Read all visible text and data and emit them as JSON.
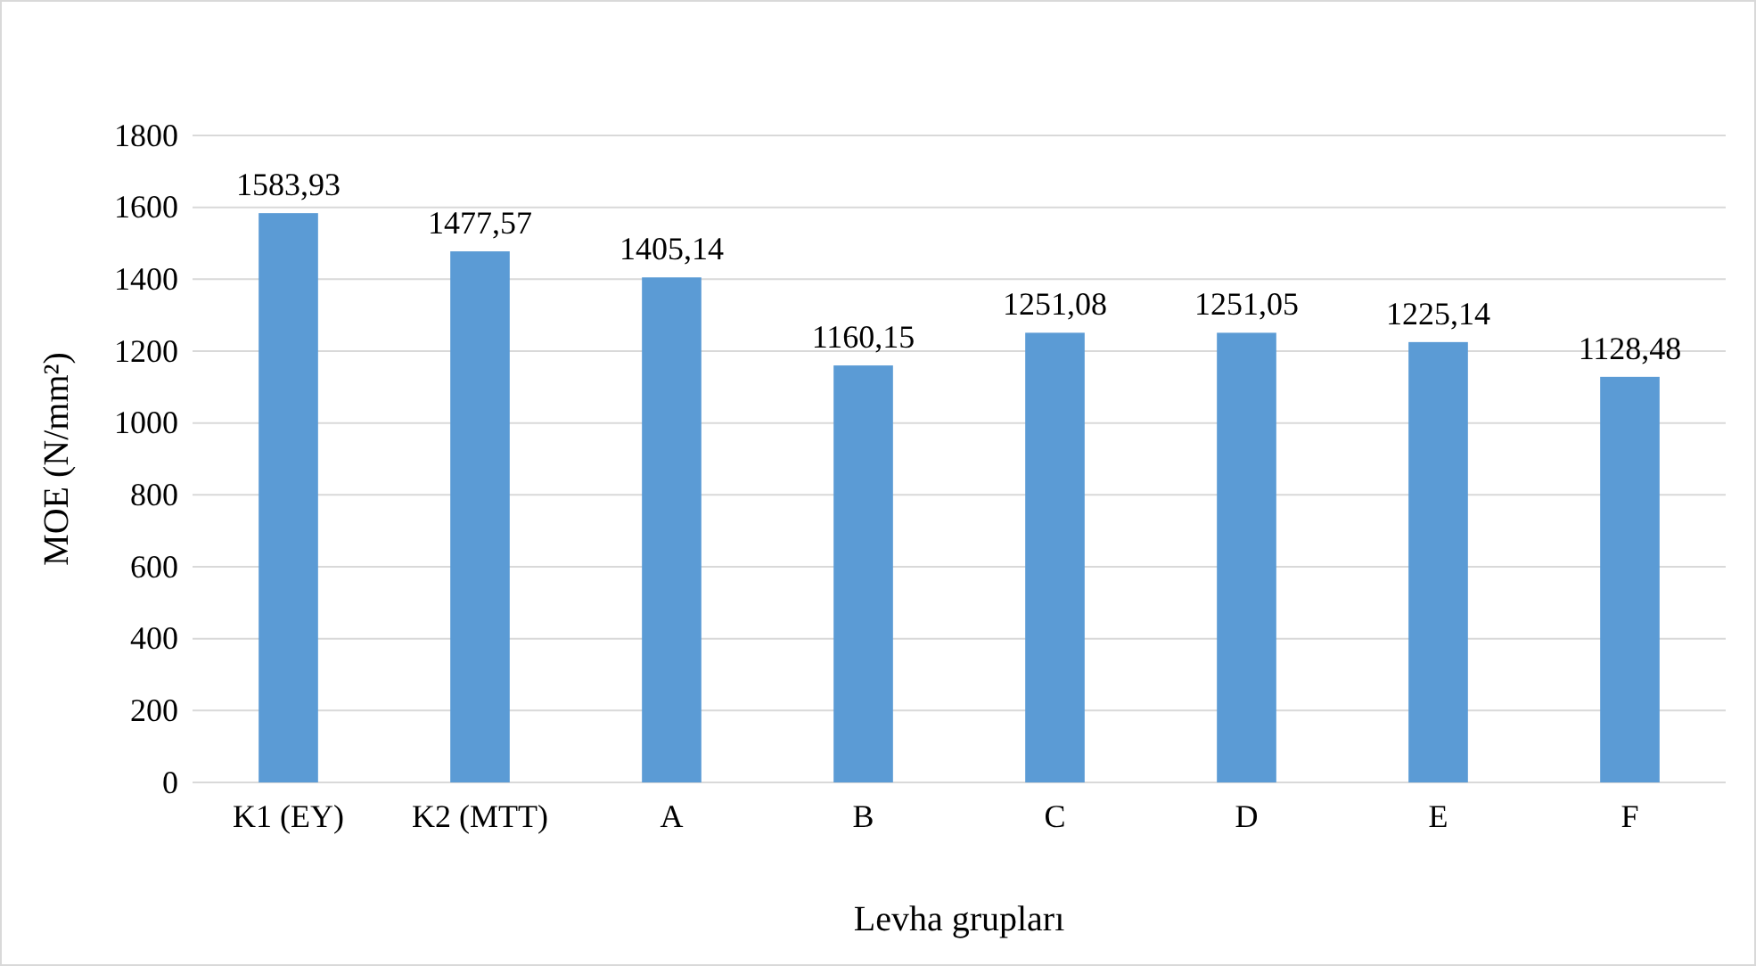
{
  "chart_data": {
    "type": "bar",
    "xlabel": "Levha grupları",
    "ylabel": "MOE (N/mm²)",
    "categories": [
      "K1 (EY)",
      "K2 (MTT)",
      "A",
      "B",
      "C",
      "D",
      "E",
      "F"
    ],
    "values": [
      1583.93,
      1477.57,
      1405.14,
      1160.15,
      1251.08,
      1251.05,
      1225.14,
      1128.48
    ],
    "value_labels": [
      "1583,93",
      "1477,57",
      "1405,14",
      "1160,15",
      "1251,08",
      "1251,05",
      "1225,14",
      "1128,48"
    ],
    "color": "#5b9bd5",
    "ylim": [
      0,
      1800
    ],
    "yticks": [
      0,
      200,
      400,
      600,
      800,
      1000,
      1200,
      1400,
      1600,
      1800
    ],
    "grid": "y"
  }
}
